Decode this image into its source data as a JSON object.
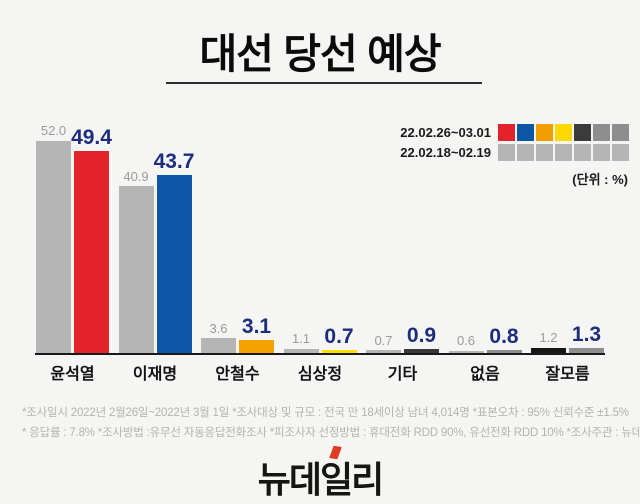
{
  "title": "대선 당선 예상",
  "legend": {
    "rows": [
      {
        "label": "22.02.26~03.01",
        "swatches": [
          "#e3232a",
          "#0b57a6",
          "#f29d00",
          "#fcd904",
          "#3b3b3b",
          "#8e8e8e",
          "#8e8e8e"
        ]
      },
      {
        "label": "22.02.18~02.19",
        "swatches": [
          "#b5b5b5",
          "#b5b5b5",
          "#b5b5b5",
          "#b5b5b5",
          "#b5b5b5",
          "#b5b5b5",
          "#b5b5b5"
        ]
      }
    ],
    "unit_note": "(단위 : %)"
  },
  "chart_data": {
    "type": "bar",
    "title": "대선 당선 예상",
    "unit": "%",
    "categories": [
      "윤석열",
      "이재명",
      "안철수",
      "심상정",
      "기타",
      "없음",
      "잘모름"
    ],
    "series": [
      {
        "name": "22.02.18~02.19",
        "values": [
          52.0,
          40.9,
          3.6,
          1.1,
          0.7,
          0.6,
          1.2
        ],
        "colors": [
          "#b5b5b5",
          "#b5b5b5",
          "#b5b5b5",
          "#b5b5b5",
          "#b5b5b5",
          "#b5b5b5",
          "#161616"
        ]
      },
      {
        "name": "22.02.26~03.01",
        "values": [
          49.4,
          43.7,
          3.1,
          0.7,
          0.9,
          0.8,
          1.3
        ],
        "colors": [
          "#e3232a",
          "#0b57a6",
          "#f5a100",
          "#ffdc00",
          "#383838",
          "#8e8e8e",
          "#8e8e8e"
        ]
      }
    ],
    "ylim": [
      0,
      55
    ],
    "grid": false,
    "legend_position": "top-right",
    "value_label_colors": {
      "previous": "#9b9b9b",
      "current": "#1c2d7d"
    }
  },
  "footer": {
    "line1": "*조사일시  2022년 2월26일~2022년 3월 1일  *조사대상 및 규모 : 전국 만 18세이상 남녀 4,014명   *표본오차 : 95% 신뢰수준 ±1.5%",
    "line2": "* 응답률 : 7.8%  *조사방법 :유무선 자동응답전화조사  *피조사자 선정방법 : 휴대전화 RDD  90%, 유선전화 RDD 10%   *조사주관 : 뉴데일리"
  },
  "logo": {
    "text": "뉴데일리",
    "accent_color": "#e03a23"
  }
}
